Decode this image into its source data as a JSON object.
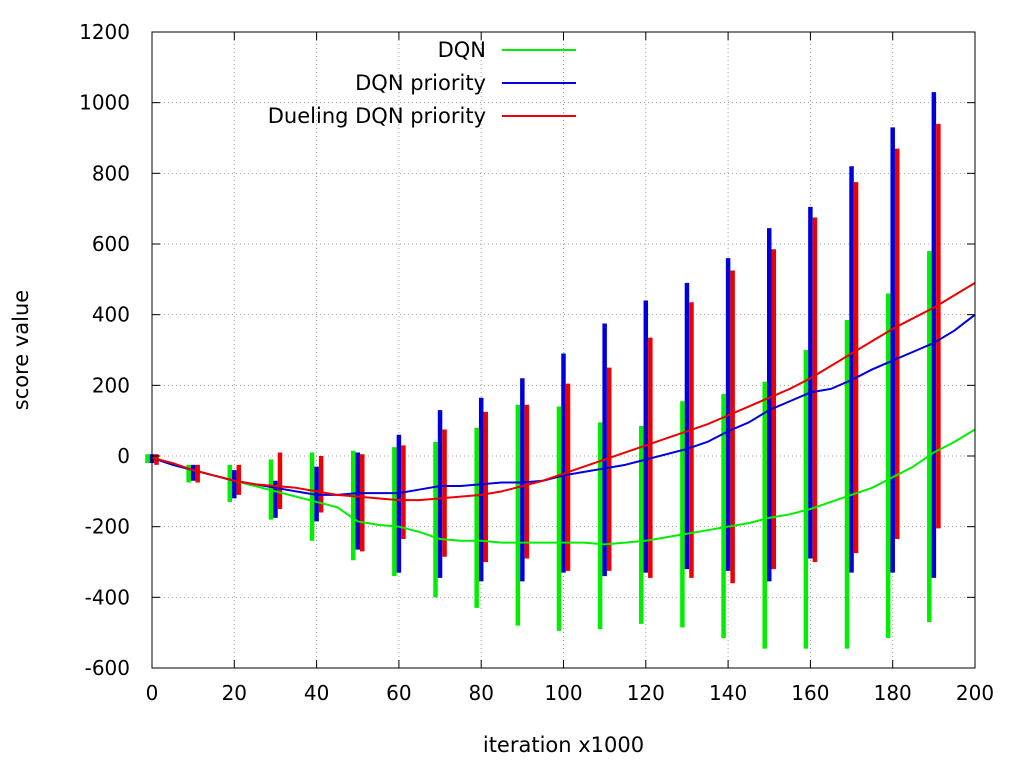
{
  "chart_data": {
    "type": "line",
    "xlabel": "iteration x1000",
    "ylabel": "score value",
    "xlim": [
      0,
      200
    ],
    "ylim": [
      -600,
      1200
    ],
    "xticks": [
      0,
      20,
      40,
      60,
      80,
      100,
      120,
      140,
      160,
      180,
      200
    ],
    "yticks": [
      -600,
      -400,
      -200,
      0,
      200,
      400,
      600,
      800,
      1000,
      1200
    ],
    "grid": true,
    "legend_position": "top-center",
    "series": [
      {
        "name": "DQN",
        "color": "#00ee00",
        "x": [
          0,
          5,
          10,
          15,
          20,
          25,
          30,
          35,
          40,
          45,
          50,
          55,
          60,
          65,
          70,
          75,
          80,
          85,
          90,
          95,
          100,
          105,
          110,
          115,
          120,
          125,
          130,
          135,
          140,
          145,
          150,
          155,
          160,
          165,
          170,
          175,
          180,
          185,
          190,
          195,
          200
        ],
        "y": [
          -5,
          -25,
          -40,
          -55,
          -70,
          -85,
          -100,
          -115,
          -130,
          -145,
          -185,
          -195,
          -200,
          -215,
          -235,
          -240,
          -240,
          -245,
          -245,
          -245,
          -245,
          -245,
          -250,
          -245,
          -240,
          -230,
          -220,
          -210,
          -200,
          -190,
          -175,
          -165,
          -150,
          -130,
          -110,
          -90,
          -60,
          -30,
          10,
          40,
          75
        ],
        "errorbars": [
          {
            "x": 0,
            "low": -20,
            "high": 5
          },
          {
            "x": 10,
            "low": -75,
            "high": -25
          },
          {
            "x": 20,
            "low": -130,
            "high": -25
          },
          {
            "x": 30,
            "low": -180,
            "high": -10
          },
          {
            "x": 40,
            "low": -240,
            "high": 10
          },
          {
            "x": 50,
            "low": -295,
            "high": 15
          },
          {
            "x": 60,
            "low": -340,
            "high": 25
          },
          {
            "x": 70,
            "low": -400,
            "high": 40
          },
          {
            "x": 80,
            "low": -430,
            "high": 80
          },
          {
            "x": 90,
            "low": -480,
            "high": 145
          },
          {
            "x": 100,
            "low": -495,
            "high": 140
          },
          {
            "x": 110,
            "low": -490,
            "high": 95
          },
          {
            "x": 120,
            "low": -475,
            "high": 85
          },
          {
            "x": 130,
            "low": -485,
            "high": 155
          },
          {
            "x": 140,
            "low": -515,
            "high": 175
          },
          {
            "x": 150,
            "low": -545,
            "high": 210
          },
          {
            "x": 160,
            "low": -545,
            "high": 300
          },
          {
            "x": 170,
            "low": -545,
            "high": 385
          },
          {
            "x": 180,
            "low": -515,
            "high": 460
          },
          {
            "x": 190,
            "low": -470,
            "high": 580
          }
        ]
      },
      {
        "name": "DQN priority",
        "color": "#0000dd",
        "x": [
          0,
          5,
          10,
          15,
          20,
          25,
          30,
          35,
          40,
          45,
          50,
          55,
          60,
          65,
          70,
          75,
          80,
          85,
          90,
          95,
          100,
          105,
          110,
          115,
          120,
          125,
          130,
          135,
          140,
          145,
          150,
          155,
          160,
          165,
          170,
          175,
          180,
          185,
          190,
          195,
          200
        ],
        "y": [
          -5,
          -25,
          -40,
          -55,
          -70,
          -80,
          -90,
          -100,
          -110,
          -110,
          -105,
          -105,
          -105,
          -95,
          -85,
          -85,
          -80,
          -75,
          -75,
          -70,
          -55,
          -45,
          -35,
          -25,
          -10,
          5,
          20,
          40,
          70,
          95,
          130,
          155,
          180,
          190,
          215,
          245,
          270,
          295,
          320,
          355,
          400
        ],
        "errorbars": [
          {
            "x": 0,
            "low": -20,
            "high": 5
          },
          {
            "x": 10,
            "low": -70,
            "high": -25
          },
          {
            "x": 20,
            "low": -120,
            "high": -40
          },
          {
            "x": 30,
            "low": -175,
            "high": -70
          },
          {
            "x": 40,
            "low": -185,
            "high": -30
          },
          {
            "x": 50,
            "low": -265,
            "high": 10
          },
          {
            "x": 60,
            "low": -330,
            "high": 60
          },
          {
            "x": 70,
            "low": -345,
            "high": 130
          },
          {
            "x": 80,
            "low": -355,
            "high": 165
          },
          {
            "x": 90,
            "low": -355,
            "high": 220
          },
          {
            "x": 100,
            "low": -330,
            "high": 290
          },
          {
            "x": 110,
            "low": -340,
            "high": 375
          },
          {
            "x": 120,
            "low": -330,
            "high": 440
          },
          {
            "x": 130,
            "low": -320,
            "high": 490
          },
          {
            "x": 140,
            "low": -325,
            "high": 560
          },
          {
            "x": 150,
            "low": -355,
            "high": 645
          },
          {
            "x": 160,
            "low": -290,
            "high": 705
          },
          {
            "x": 170,
            "low": -330,
            "high": 820
          },
          {
            "x": 180,
            "low": -330,
            "high": 930
          },
          {
            "x": 190,
            "low": -345,
            "high": 1030
          }
        ]
      },
      {
        "name": "Dueling DQN priority",
        "color": "#ee0000",
        "x": [
          0,
          5,
          10,
          15,
          20,
          25,
          30,
          35,
          40,
          45,
          50,
          55,
          60,
          65,
          70,
          75,
          80,
          85,
          90,
          95,
          100,
          105,
          110,
          115,
          120,
          125,
          130,
          135,
          140,
          145,
          150,
          155,
          160,
          165,
          170,
          175,
          180,
          185,
          190,
          195,
          200
        ],
        "y": [
          -5,
          -20,
          -40,
          -55,
          -70,
          -80,
          -85,
          -90,
          -100,
          -110,
          -115,
          -120,
          -125,
          -125,
          -120,
          -115,
          -110,
          -100,
          -85,
          -70,
          -50,
          -30,
          -10,
          10,
          30,
          50,
          70,
          90,
          115,
          140,
          165,
          190,
          220,
          255,
          290,
          325,
          360,
          390,
          420,
          455,
          490
        ],
        "errorbars": [
          {
            "x": 0,
            "low": -25,
            "high": 5
          },
          {
            "x": 10,
            "low": -75,
            "high": -25
          },
          {
            "x": 20,
            "low": -110,
            "high": -25
          },
          {
            "x": 30,
            "low": -150,
            "high": 10
          },
          {
            "x": 40,
            "low": -160,
            "high": 0
          },
          {
            "x": 50,
            "low": -270,
            "high": 5
          },
          {
            "x": 60,
            "low": -235,
            "high": 30
          },
          {
            "x": 70,
            "low": -285,
            "high": 75
          },
          {
            "x": 80,
            "low": -300,
            "high": 125
          },
          {
            "x": 90,
            "low": -290,
            "high": 145
          },
          {
            "x": 100,
            "low": -325,
            "high": 205
          },
          {
            "x": 110,
            "low": -325,
            "high": 250
          },
          {
            "x": 120,
            "low": -345,
            "high": 335
          },
          {
            "x": 130,
            "low": -345,
            "high": 435
          },
          {
            "x": 140,
            "low": -360,
            "high": 525
          },
          {
            "x": 150,
            "low": -320,
            "high": 585
          },
          {
            "x": 160,
            "low": -300,
            "high": 675
          },
          {
            "x": 170,
            "low": -275,
            "high": 775
          },
          {
            "x": 180,
            "low": -235,
            "high": 870
          },
          {
            "x": 190,
            "low": -205,
            "high": 940
          }
        ]
      }
    ]
  }
}
